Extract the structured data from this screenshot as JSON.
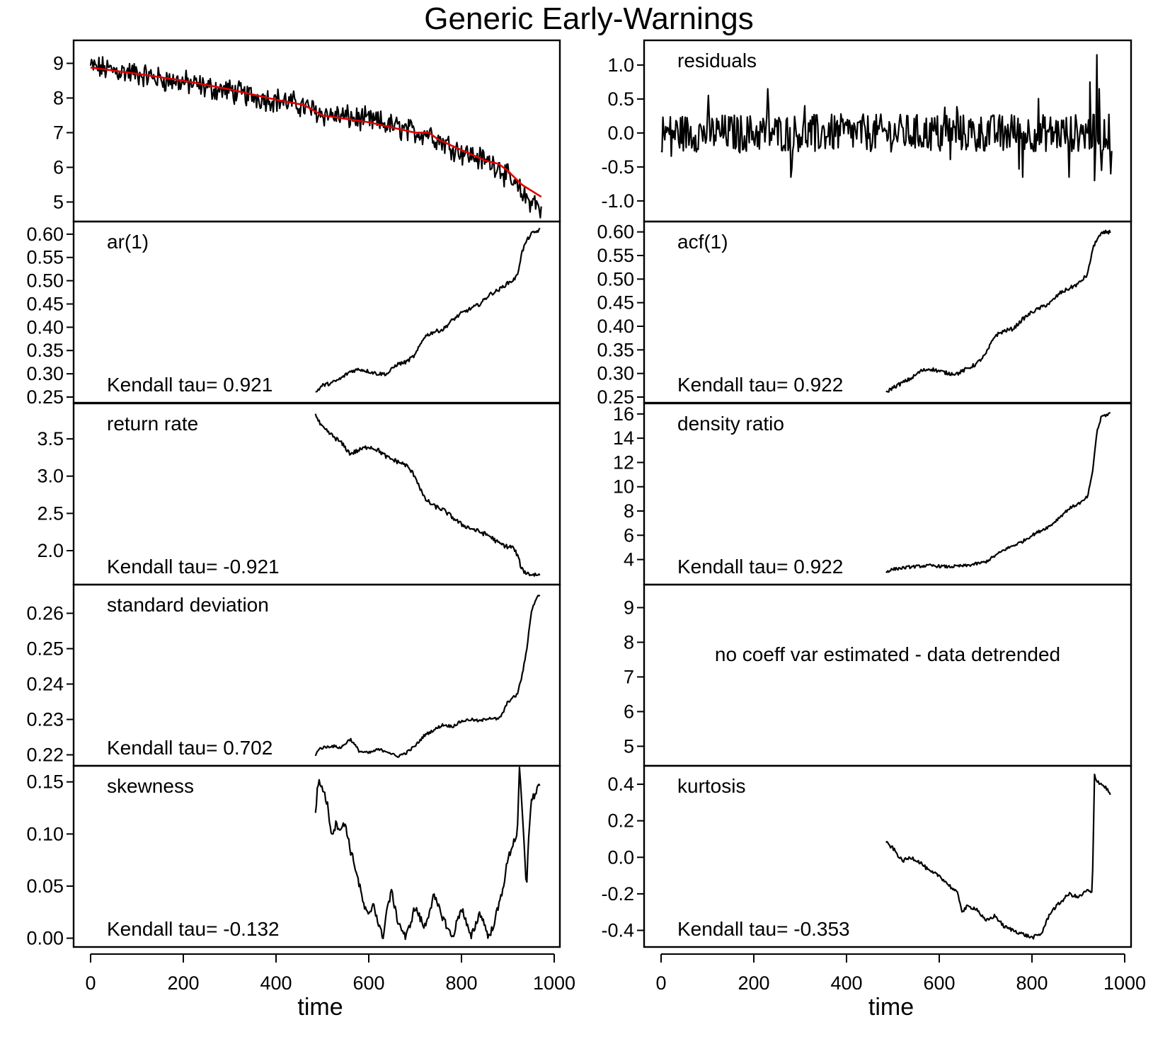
{
  "title": "Generic Early-Warnings",
  "chart_data": {
    "type": "line",
    "title": "Generic Early-Warnings",
    "layout": "5 rows x 2 columns of stacked panels sharing x-axes",
    "colors": {
      "series": "#000000",
      "trend": "#e00000"
    },
    "xlabel": "time",
    "xlim": [
      0,
      1000
    ],
    "x_ticks": [
      0,
      200,
      400,
      600,
      800,
      1000
    ],
    "panels": [
      {
        "id": "data",
        "label": "",
        "kendall": "",
        "ylim": [
          4.6,
          9.5
        ],
        "y_ticks": [
          {
            "v": 5,
            "t": "5"
          },
          {
            "v": 6,
            "t": "6"
          },
          {
            "v": 7,
            "t": "7"
          },
          {
            "v": 8,
            "t": "8"
          },
          {
            "v": 9,
            "t": "9"
          }
        ],
        "series": {
          "kind": "noisy",
          "x": [
            0,
            50,
            100,
            150,
            200,
            250,
            300,
            350,
            400,
            450,
            500,
            550,
            600,
            650,
            700,
            730,
            750,
            800,
            850,
            880,
            900,
            920,
            940,
            960,
            972
          ],
          "y": [
            8.9,
            8.8,
            8.7,
            8.55,
            8.45,
            8.3,
            8.2,
            8.05,
            7.95,
            7.8,
            7.55,
            7.45,
            7.35,
            7.2,
            7.0,
            7.0,
            6.8,
            6.45,
            6.2,
            6.05,
            5.7,
            5.4,
            5.1,
            5.0,
            4.7
          ],
          "noise": 0.28
        },
        "trend": {
          "x": [
            0,
            100,
            200,
            300,
            400,
            460,
            500,
            600,
            700,
            730,
            750,
            800,
            850,
            880,
            900,
            930,
            972
          ],
          "y": [
            8.88,
            8.7,
            8.5,
            8.25,
            7.95,
            7.8,
            7.5,
            7.3,
            7.0,
            7.0,
            6.8,
            6.5,
            6.2,
            6.1,
            5.9,
            5.5,
            5.15
          ]
        }
      },
      {
        "id": "residuals",
        "label": "residuals",
        "kendall": "",
        "ylim": [
          -1.22,
          1.28
        ],
        "y_ticks": [
          {
            "v": -1.0,
            "t": "-1.0"
          },
          {
            "v": -0.5,
            "t": "-0.5"
          },
          {
            "v": 0.0,
            "t": "0.0"
          },
          {
            "v": 0.5,
            "t": "0.5"
          },
          {
            "v": 1.0,
            "t": "1.0"
          }
        ],
        "series": {
          "kind": "residuals",
          "x": [
            0,
            972
          ],
          "y": [
            0,
            0
          ],
          "noise": 0.28,
          "spikes": [
            {
              "x": 940,
              "y": 1.15
            },
            {
              "x": 925,
              "y": 0.75
            },
            {
              "x": 945,
              "y": 0.65
            },
            {
              "x": 935,
              "y": -0.7
            },
            {
              "x": 950,
              "y": -0.55
            },
            {
              "x": 230,
              "y": 0.65
            },
            {
              "x": 280,
              "y": -0.65
            },
            {
              "x": 780,
              "y": -0.65
            },
            {
              "x": 880,
              "y": -0.65
            },
            {
              "x": 970,
              "y": -0.6
            }
          ]
        }
      },
      {
        "id": "ar1",
        "label": "ar(1)",
        "kendall": "Kendall tau= 0.921",
        "ylim": [
          0.25,
          0.615
        ],
        "y_ticks": [
          {
            "v": 0.25,
            "t": "0.25"
          },
          {
            "v": 0.3,
            "t": "0.30"
          },
          {
            "v": 0.35,
            "t": "0.35"
          },
          {
            "v": 0.4,
            "t": "0.40"
          },
          {
            "v": 0.45,
            "t": "0.45"
          },
          {
            "v": 0.5,
            "t": "0.50"
          },
          {
            "v": 0.55,
            "t": "0.55"
          },
          {
            "v": 0.6,
            "t": "0.60"
          }
        ],
        "series": {
          "kind": "smooth",
          "x": [
            485,
            500,
            520,
            540,
            560,
            580,
            600,
            620,
            640,
            660,
            680,
            700,
            720,
            740,
            760,
            780,
            800,
            820,
            840,
            860,
            880,
            900,
            910,
            920,
            930,
            940,
            950,
            960,
            970
          ],
          "y": [
            0.26,
            0.275,
            0.28,
            0.29,
            0.305,
            0.31,
            0.305,
            0.3,
            0.3,
            0.32,
            0.325,
            0.34,
            0.38,
            0.39,
            0.395,
            0.415,
            0.43,
            0.44,
            0.45,
            0.47,
            0.48,
            0.495,
            0.5,
            0.51,
            0.56,
            0.585,
            0.6,
            0.605,
            0.61
          ],
          "noise": 0.004
        }
      },
      {
        "id": "acf1",
        "label": "acf(1)",
        "kendall": "Kendall tau= 0.922",
        "ylim": [
          0.25,
          0.61
        ],
        "y_ticks": [
          {
            "v": 0.25,
            "t": "0.25"
          },
          {
            "v": 0.3,
            "t": "0.30"
          },
          {
            "v": 0.35,
            "t": "0.35"
          },
          {
            "v": 0.4,
            "t": "0.40"
          },
          {
            "v": 0.45,
            "t": "0.45"
          },
          {
            "v": 0.5,
            "t": "0.50"
          },
          {
            "v": 0.55,
            "t": "0.55"
          },
          {
            "v": 0.6,
            "t": "0.60"
          }
        ],
        "series": {
          "kind": "smooth",
          "x": [
            485,
            500,
            520,
            540,
            560,
            580,
            600,
            620,
            640,
            660,
            680,
            700,
            720,
            740,
            760,
            780,
            800,
            820,
            840,
            860,
            880,
            900,
            910,
            920,
            930,
            940,
            950,
            960,
            970
          ],
          "y": [
            0.26,
            0.27,
            0.28,
            0.29,
            0.305,
            0.31,
            0.305,
            0.3,
            0.3,
            0.31,
            0.32,
            0.34,
            0.38,
            0.39,
            0.395,
            0.415,
            0.43,
            0.44,
            0.45,
            0.47,
            0.48,
            0.49,
            0.5,
            0.51,
            0.56,
            0.585,
            0.595,
            0.6,
            0.6
          ],
          "noise": 0.004
        }
      },
      {
        "id": "return-rate",
        "label": "return rate",
        "kendall": "Kendall tau= -0.921",
        "ylim": [
          1.62,
          3.9
        ],
        "y_ticks": [
          {
            "v": 2.0,
            "t": "2.0"
          },
          {
            "v": 2.5,
            "t": "2.5"
          },
          {
            "v": 3.0,
            "t": "3.0"
          },
          {
            "v": 3.5,
            "t": "3.5"
          }
        ],
        "series": {
          "kind": "smooth",
          "x": [
            485,
            490,
            500,
            520,
            540,
            560,
            580,
            600,
            620,
            640,
            660,
            680,
            700,
            720,
            740,
            760,
            780,
            800,
            820,
            840,
            860,
            880,
            900,
            910,
            920,
            930,
            940,
            950,
            960,
            970
          ],
          "y": [
            3.85,
            3.75,
            3.65,
            3.55,
            3.45,
            3.3,
            3.35,
            3.4,
            3.35,
            3.25,
            3.2,
            3.15,
            3.0,
            2.7,
            2.6,
            2.55,
            2.45,
            2.35,
            2.3,
            2.25,
            2.2,
            2.1,
            2.05,
            2.05,
            1.95,
            1.75,
            1.7,
            1.68,
            1.68,
            1.67
          ],
          "noise": 0.03
        }
      },
      {
        "id": "density-ratio",
        "label": "density ratio",
        "kendall": "Kendall tau= 0.922",
        "ylim": [
          2.4,
          16.4
        ],
        "y_ticks": [
          {
            "v": 4,
            "t": "4"
          },
          {
            "v": 6,
            "t": "6"
          },
          {
            "v": 8,
            "t": "8"
          },
          {
            "v": 10,
            "t": "10"
          },
          {
            "v": 12,
            "t": "12"
          },
          {
            "v": 14,
            "t": "14"
          },
          {
            "v": 16,
            "t": "16"
          }
        ],
        "series": {
          "kind": "smooth",
          "x": [
            485,
            500,
            540,
            580,
            620,
            660,
            700,
            740,
            780,
            800,
            840,
            860,
            880,
            900,
            910,
            920,
            930,
            940,
            950,
            960,
            970
          ],
          "y": [
            3.0,
            3.2,
            3.4,
            3.5,
            3.4,
            3.5,
            3.8,
            4.8,
            5.5,
            6.0,
            6.8,
            7.5,
            8.2,
            8.6,
            8.8,
            9.2,
            11.0,
            14.5,
            15.8,
            15.9,
            16.1
          ],
          "noise": 0.12
        }
      },
      {
        "id": "standard-deviation",
        "label": "standard deviation",
        "kendall": "Kendall tau= 0.702",
        "ylim": [
          0.2185,
          0.2665
        ],
        "y_ticks": [
          {
            "v": 0.22,
            "t": "0.22"
          },
          {
            "v": 0.23,
            "t": "0.23"
          },
          {
            "v": 0.24,
            "t": "0.24"
          },
          {
            "v": 0.25,
            "t": "0.25"
          },
          {
            "v": 0.26,
            "t": "0.26"
          }
        ],
        "series": {
          "kind": "smooth",
          "x": [
            485,
            490,
            500,
            520,
            540,
            560,
            580,
            600,
            620,
            640,
            660,
            680,
            700,
            720,
            740,
            760,
            780,
            800,
            820,
            840,
            860,
            880,
            890,
            900,
            910,
            920,
            930,
            940,
            950,
            960,
            970
          ],
          "y": [
            0.2195,
            0.2215,
            0.222,
            0.2225,
            0.222,
            0.2245,
            0.221,
            0.2205,
            0.2215,
            0.221,
            0.2195,
            0.2205,
            0.2225,
            0.2255,
            0.227,
            0.2285,
            0.228,
            0.2295,
            0.23,
            0.2295,
            0.2305,
            0.23,
            0.232,
            0.235,
            0.236,
            0.237,
            0.242,
            0.249,
            0.26,
            0.264,
            0.2655
          ],
          "noise": 0.0004
        }
      },
      {
        "id": "coeff-var",
        "label": "",
        "kendall": "",
        "note": "no coeff var estimated - data detrended",
        "ylim": [
          4.6,
          9.5
        ],
        "y_ticks": [
          {
            "v": 5,
            "t": "5"
          },
          {
            "v": 6,
            "t": "6"
          },
          {
            "v": 7,
            "t": "7"
          },
          {
            "v": 8,
            "t": "8"
          },
          {
            "v": 9,
            "t": "9"
          }
        ],
        "series": null
      },
      {
        "id": "skewness",
        "label": "skewness",
        "kendall": "Kendall tau= -0.132",
        "ylim": [
          -0.003,
          0.16
        ],
        "y_ticks": [
          {
            "v": 0.0,
            "t": "0.00"
          },
          {
            "v": 0.05,
            "t": "0.05"
          },
          {
            "v": 0.1,
            "t": "0.10"
          },
          {
            "v": 0.15,
            "t": "0.15"
          }
        ],
        "series": {
          "kind": "smooth",
          "x": [
            485,
            490,
            500,
            510,
            520,
            530,
            540,
            550,
            560,
            570,
            580,
            590,
            600,
            610,
            620,
            630,
            640,
            650,
            660,
            680,
            700,
            720,
            740,
            760,
            780,
            800,
            820,
            840,
            860,
            880,
            890,
            900,
            910,
            920,
            925,
            930,
            935,
            940,
            945,
            950,
            960,
            970
          ],
          "y": [
            0.118,
            0.15,
            0.145,
            0.13,
            0.1,
            0.11,
            0.105,
            0.11,
            0.085,
            0.07,
            0.05,
            0.03,
            0.02,
            0.035,
            0.015,
            0.0,
            0.03,
            0.045,
            0.02,
            0.0,
            0.03,
            0.01,
            0.04,
            0.02,
            0.0,
            0.03,
            0.0,
            0.025,
            0.0,
            0.03,
            0.05,
            0.075,
            0.09,
            0.1,
            0.16,
            0.13,
            0.09,
            0.045,
            0.1,
            0.13,
            0.14,
            0.15
          ],
          "noise": 0.004
        }
      },
      {
        "id": "kurtosis",
        "label": "kurtosis",
        "kendall": "Kendall tau= -0.353",
        "ylim": [
          -0.46,
          0.47
        ],
        "y_ticks": [
          {
            "v": -0.4,
            "t": "-0.4"
          },
          {
            "v": -0.2,
            "t": "-0.2"
          },
          {
            "v": 0.0,
            "t": "0.0"
          },
          {
            "v": 0.2,
            "t": "0.2"
          },
          {
            "v": 0.4,
            "t": "0.4"
          }
        ],
        "series": {
          "kind": "smooth",
          "x": [
            485,
            500,
            520,
            540,
            560,
            580,
            600,
            620,
            640,
            650,
            660,
            680,
            700,
            720,
            740,
            760,
            780,
            800,
            820,
            840,
            860,
            880,
            900,
            920,
            930,
            935,
            940,
            950,
            960,
            970
          ],
          "y": [
            0.08,
            0.05,
            -0.02,
            0.0,
            -0.03,
            -0.08,
            -0.1,
            -0.15,
            -0.2,
            -0.3,
            -0.27,
            -0.28,
            -0.35,
            -0.32,
            -0.38,
            -0.4,
            -0.42,
            -0.44,
            -0.42,
            -0.3,
            -0.25,
            -0.2,
            -0.22,
            -0.18,
            -0.2,
            0.45,
            0.42,
            0.4,
            0.38,
            0.34
          ],
          "noise": 0.01
        }
      }
    ]
  }
}
